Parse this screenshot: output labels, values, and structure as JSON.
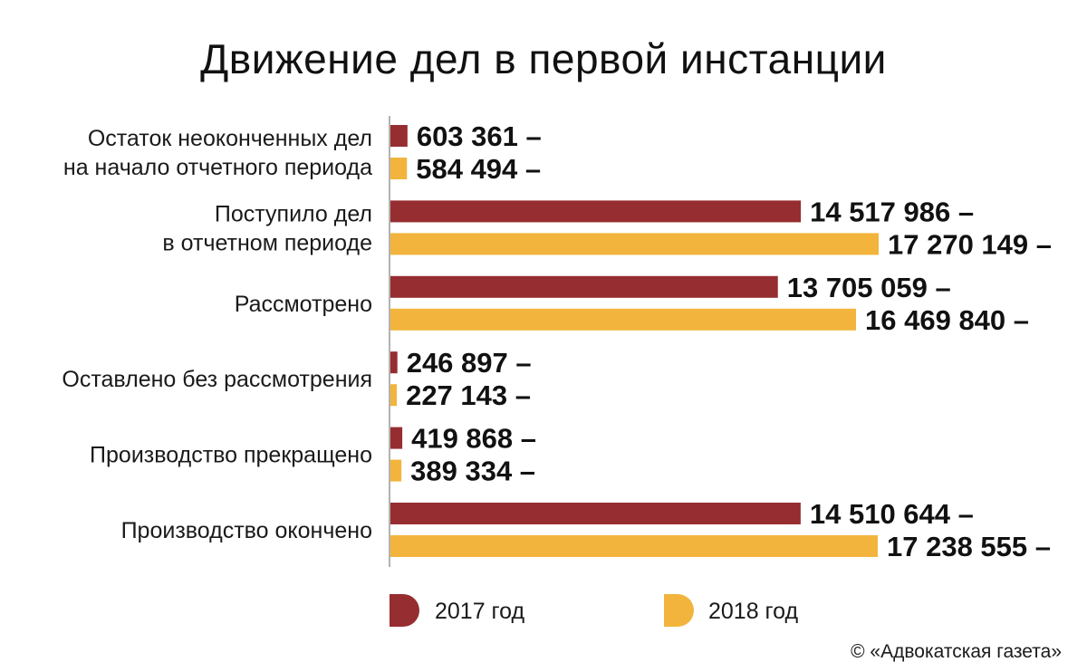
{
  "title": "Движение дел в первой инстанции",
  "credit": "© «Адвокатская газета»",
  "colors": {
    "series_2017": "#962d31",
    "series_2018": "#f2b43c",
    "axis": "#999999"
  },
  "chart_data": {
    "type": "bar",
    "orientation": "horizontal",
    "title": "Движение дел в первой инстанции",
    "categories": [
      [
        "Остаток неоконченных дел",
        "на начало отчетного периода"
      ],
      [
        "Поступило дел",
        "в отчетном периоде"
      ],
      [
        "Рассмотрено"
      ],
      [
        "Оставлено без рассмотрения"
      ],
      [
        "Производство прекращено"
      ],
      [
        "Производство окончено"
      ]
    ],
    "series": [
      {
        "name": "2017 год",
        "values": [
          603361,
          14517986,
          13705059,
          246897,
          419868,
          14510644
        ],
        "labels": [
          "603 361 –",
          "14 517 986 –",
          "13 705 059 –",
          "246 897 –",
          "419 868 –",
          "14 510 644 –"
        ]
      },
      {
        "name": "2018 год",
        "values": [
          584494,
          17270149,
          16469840,
          227143,
          389334,
          17238555
        ],
        "labels": [
          "584 494 –",
          "17 270 149 –",
          "16 469 840 –",
          "227 143 –",
          "389 334 –",
          "17 238 555 –"
        ]
      }
    ],
    "xlim": [
      0,
      17270149
    ],
    "legend": "bottom",
    "grid": false
  }
}
